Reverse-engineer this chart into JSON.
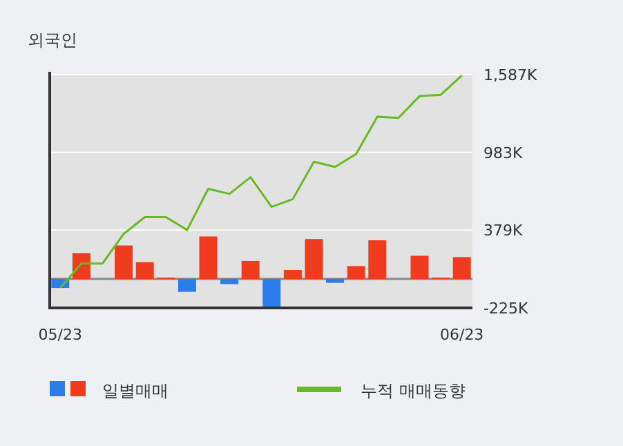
{
  "chart_data": {
    "type": "bar",
    "title": "외국인",
    "categories": [
      "05/23",
      null,
      null,
      null,
      null,
      null,
      null,
      null,
      null,
      null,
      null,
      null,
      null,
      null,
      null,
      null,
      null,
      null,
      null,
      "06/23"
    ],
    "series": [
      {
        "name": "일별매매",
        "colors": [
          "#2b7de9",
          "#f03c1e",
          "#f03c1e",
          "#f03c1e",
          "#f03c1e",
          "#f03c1e",
          "#2b7de9",
          "#f03c1e",
          "#2b7de9",
          "#f03c1e",
          "#2b7de9",
          "#f03c1e",
          "#f03c1e",
          "#2b7de9",
          "#f03c1e",
          "#f03c1e",
          "#2b7de9",
          "#f03c1e",
          "#f03c1e",
          "#f03c1e"
        ],
        "values": [
          -70000,
          200000,
          0,
          260000,
          130000,
          10000,
          -100000,
          330000,
          -40000,
          140000,
          -220000,
          70000,
          310000,
          -30000,
          100000,
          300000,
          null,
          180000,
          10000,
          170000
        ]
      },
      {
        "name": "누적 매매동향",
        "type": "line",
        "color": "#66bb22",
        "values": [
          -70000,
          120000,
          120000,
          350000,
          480000,
          480000,
          380000,
          700000,
          660000,
          790000,
          560000,
          620000,
          910000,
          870000,
          970000,
          1260000,
          1250000,
          1420000,
          1430000,
          1580000
        ]
      }
    ],
    "ylim": [
      -225000,
      1587000
    ],
    "yticks": [
      {
        "value": -225000,
        "label": "-225K"
      },
      {
        "value": 379000,
        "label": "379K"
      },
      {
        "value": 983000,
        "label": "983K"
      },
      {
        "value": 1587000,
        "label": "1,587K"
      }
    ],
    "ref_lines": [
      {
        "axis": "y",
        "value": 0,
        "color": "#888888"
      }
    ],
    "grid": "y",
    "legend": "bottom",
    "marker": "none",
    "line_style": "solid"
  }
}
